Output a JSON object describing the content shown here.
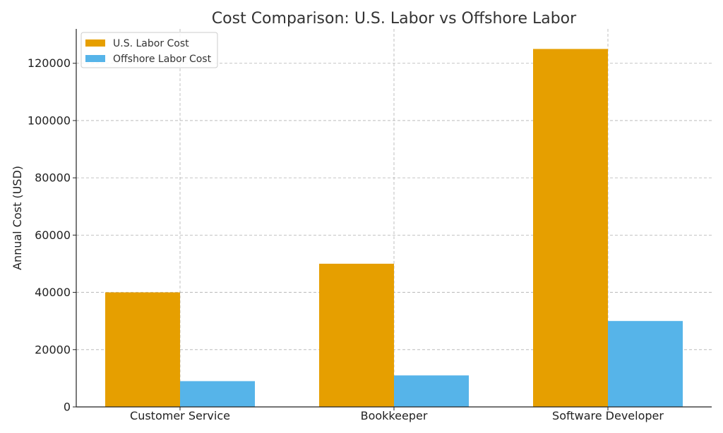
{
  "chart_data": {
    "type": "bar",
    "title": "Cost Comparison: U.S. Labor vs Offshore Labor",
    "xlabel": "",
    "ylabel": "Annual Cost (USD)",
    "categories": [
      "Customer Service",
      "Bookkeeper",
      "Software Developer"
    ],
    "series": [
      {
        "name": "U.S. Labor Cost",
        "color": "#E69F00",
        "values": [
          40000,
          50000,
          125000
        ]
      },
      {
        "name": "Offshore Labor Cost",
        "color": "#56B4E9",
        "values": [
          9000,
          11000,
          30000
        ]
      }
    ],
    "ylim": [
      0,
      132000
    ],
    "yticks": [
      0,
      20000,
      40000,
      60000,
      80000,
      100000,
      120000
    ],
    "ytick_labels": [
      "0",
      "20000",
      "40000",
      "60000",
      "80000",
      "100000",
      "120000"
    ],
    "grid": true,
    "legend_position": "top-left"
  }
}
